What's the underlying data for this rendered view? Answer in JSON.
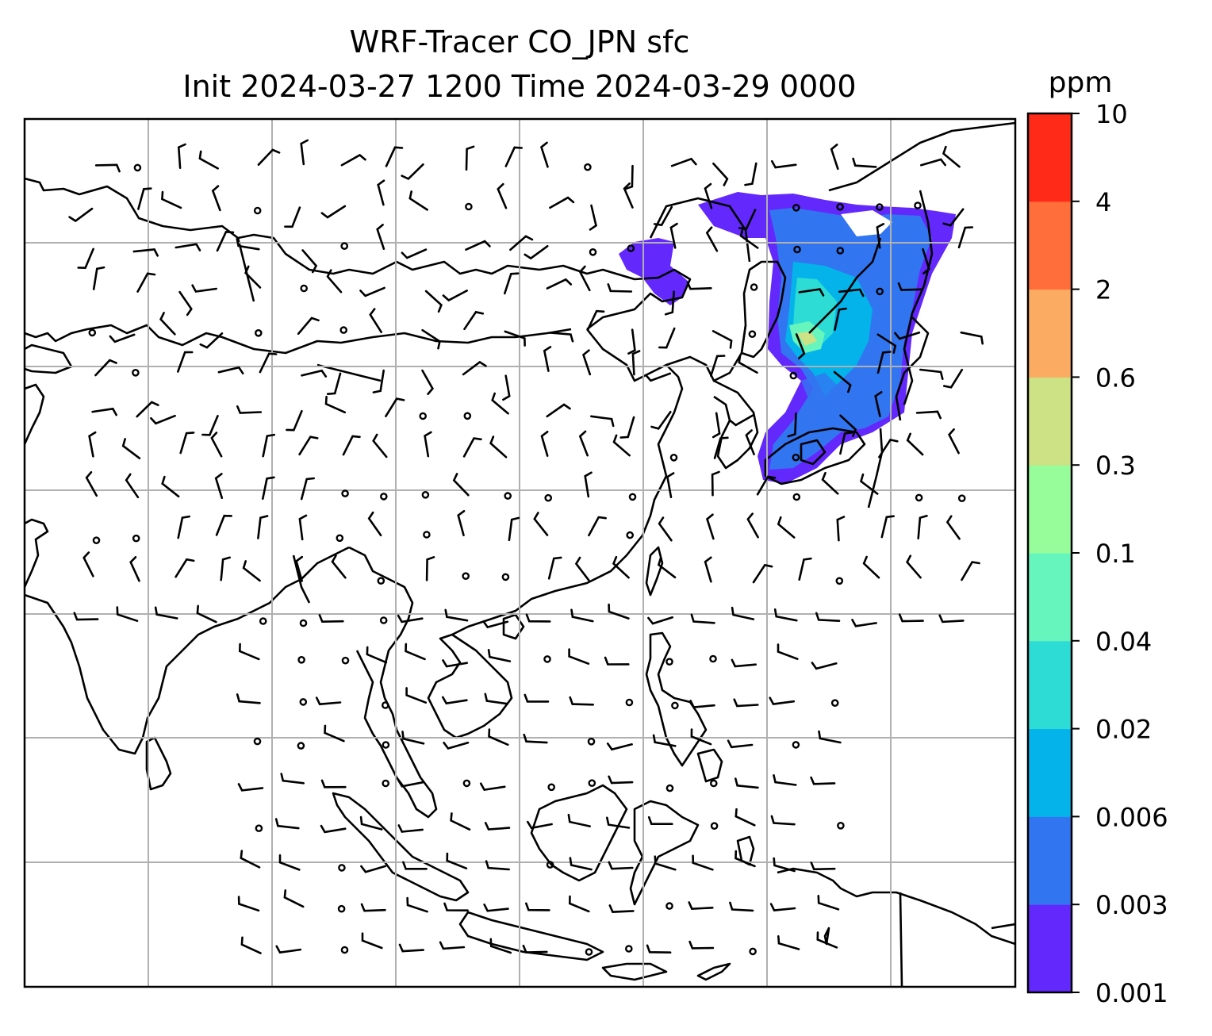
{
  "title_line1": "WRF-Tracer CO_JPN sfc",
  "title_line2": "Init 2024-03-27 1200 Time 2024-03-29 0000",
  "colorbar": {
    "unit_label": "ppm",
    "ticks": [
      "0.001",
      "0.003",
      "0.006",
      "0.02",
      "0.04",
      "0.1",
      "0.3",
      "0.6",
      "2",
      "4",
      "10"
    ],
    "colors": [
      "#6328fc",
      "#3275f0",
      "#04b3ea",
      "#2ddcd4",
      "#66f6bd",
      "#97fc9a",
      "#cde185",
      "#fcac62",
      "#ff6e3b",
      "#ff2a17"
    ]
  },
  "chart_data": {
    "type": "heatmap",
    "title": "WRF-Tracer CO_JPN sfc",
    "subtitle": "Init 2024-03-27 1200 Time 2024-03-29 0000",
    "variable": "CO_JPN surface tracer concentration",
    "unit": "ppm",
    "levels": [
      0.001,
      0.003,
      0.006,
      0.02,
      0.04,
      0.1,
      0.3,
      0.6,
      2,
      4,
      10
    ],
    "colormap": "rainbow",
    "grid": true,
    "overlays": [
      "coastlines",
      "country borders",
      "wind barbs"
    ],
    "plume_extent": "northeast corner: Sea of Japan, northern Japan and Sakhalin; max values in 0.04–0.3 ppm band",
    "wind_barbs_visible": true
  }
}
